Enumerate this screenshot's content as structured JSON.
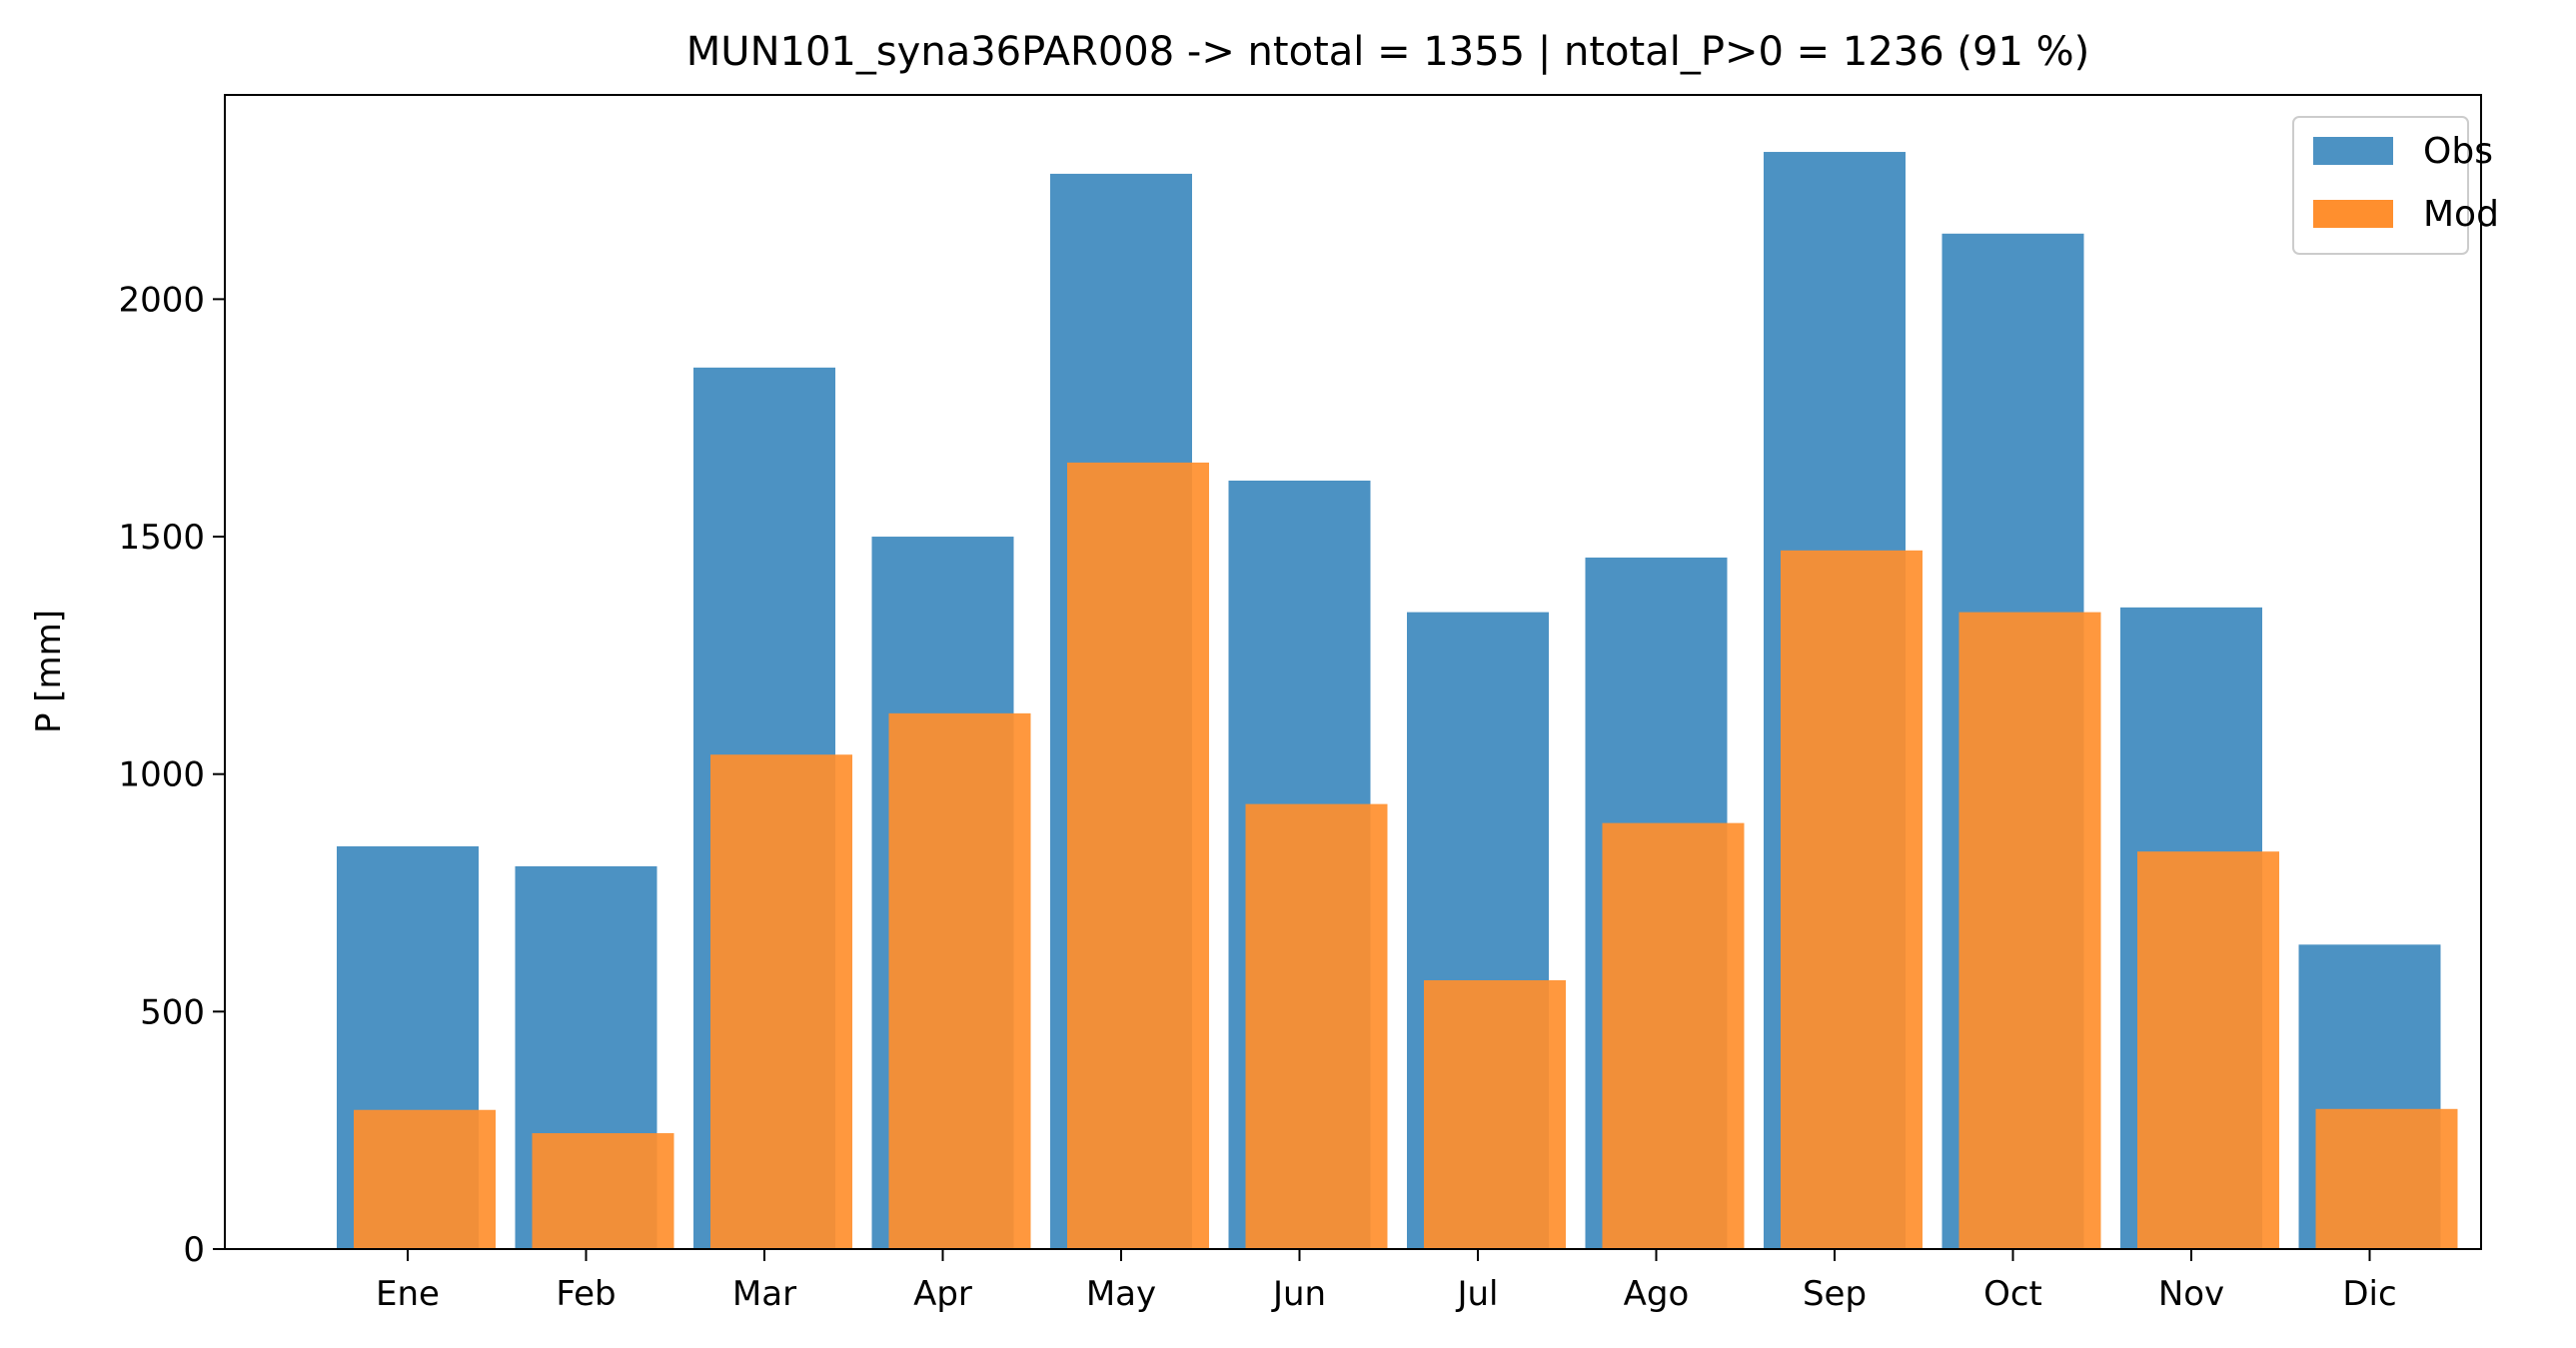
{
  "chart_data": {
    "type": "bar",
    "title": "MUN101_syna36PAR008 -> ntotal = 1355 | ntotal_P>0 = 1236 (91 %)",
    "ylabel": "P [mm]",
    "xlabel": "",
    "categories": [
      "Ene",
      "Feb",
      "Mar",
      "Apr",
      "May",
      "Jun",
      "Jul",
      "Ago",
      "Sep",
      "Oct",
      "Nov",
      "Dic"
    ],
    "ylim": [
      0,
      2430
    ],
    "yticks": [
      0,
      500,
      1000,
      1500,
      2000
    ],
    "series": [
      {
        "name": "Obs",
        "color": "#4c92c3",
        "values": [
          848,
          806,
          1856,
          1500,
          2264,
          1618,
          1341,
          1456,
          2310,
          2138,
          1351,
          641
        ]
      },
      {
        "name": "Mod",
        "color": "#ff8f2e",
        "values": [
          293,
          244,
          1041,
          1128,
          1656,
          937,
          566,
          897,
          1471,
          1341,
          837,
          295
        ]
      }
    ],
    "legend": {
      "position": "top-right"
    },
    "grid": false
  }
}
